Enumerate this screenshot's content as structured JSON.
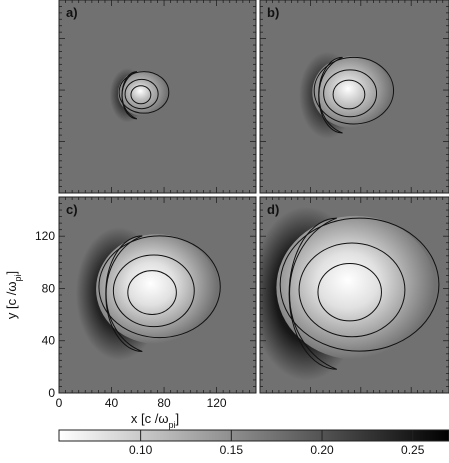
{
  "chart_data": {
    "type": "heatmap",
    "panels": [
      {
        "label": "a)",
        "center": [
          62,
          76
        ],
        "radius": 18,
        "ion_peak": 0.1,
        "edge_peak": 0.25
      },
      {
        "label": "b)",
        "center": [
          70,
          76
        ],
        "radius": 30,
        "ion_peak": 0.09,
        "edge_peak": 0.25
      },
      {
        "label": "c)",
        "center": [
          70,
          76
        ],
        "radius": 44,
        "ion_peak": 0.07,
        "edge_peak": 0.27
      },
      {
        "label": "d)",
        "center": [
          70,
          76
        ],
        "radius": 60,
        "ion_peak": 0.07,
        "edge_peak": 0.28
      }
    ],
    "background_value": 0.175,
    "xlabel": "x [c /ω",
    "xlabel_sub": "pi",
    "xlabel_end": "]",
    "ylabel": "y [c /ω",
    "ylabel_sub": "pi",
    "ylabel_end": "]",
    "xlim": [
      0,
      150
    ],
    "ylim": [
      0,
      150
    ],
    "xticks": [
      "0",
      "40",
      "80",
      "120"
    ],
    "xtick_values": [
      0,
      40,
      80,
      120
    ],
    "yticks": [
      "0",
      "40",
      "80",
      "120"
    ],
    "ytick_values": [
      0,
      40,
      80,
      120
    ],
    "colorbar": {
      "range": [
        0.055,
        0.27
      ],
      "ticks": [
        "0.10",
        "0.15",
        "0.20",
        "0.25"
      ],
      "tick_values": [
        0.1,
        0.15,
        0.2,
        0.25
      ]
    }
  }
}
